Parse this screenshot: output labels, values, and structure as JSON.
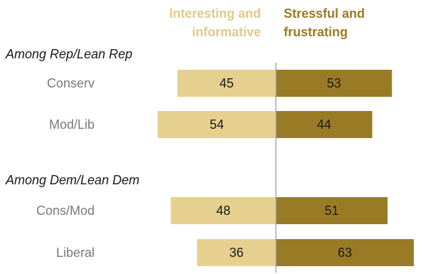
{
  "chart_data": {
    "type": "bar",
    "orientation": "horizontal-diverging",
    "series": [
      {
        "name": "Interesting and informative",
        "name_lines": [
          "Interesting and",
          "informative"
        ],
        "color": "#e6d08f",
        "text_color": "#e0c98a"
      },
      {
        "name": "Stressful and frustrating",
        "name_lines": [
          "Stressful and",
          "frustrating"
        ],
        "color": "#9a7b25",
        "text_color": "#9a7b25"
      }
    ],
    "groups": [
      {
        "label": "Among Rep/Lean Rep",
        "rows": [
          {
            "category": "Conserv",
            "values": [
              45,
              53
            ]
          },
          {
            "category": "Mod/Lib",
            "values": [
              54,
              44
            ]
          }
        ]
      },
      {
        "label": "Among Dem/Lean Dem",
        "rows": [
          {
            "category": "Cons/Mod",
            "values": [
              48,
              51
            ]
          },
          {
            "category": "Liberal",
            "values": [
              36,
              63
            ]
          }
        ]
      }
    ],
    "axis_color": "#aaaaaa",
    "grid": false
  }
}
